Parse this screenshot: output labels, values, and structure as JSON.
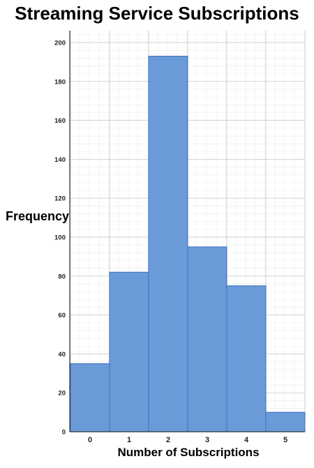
{
  "chart_data": {
    "type": "bar",
    "title": "Streaming Service Subscriptions",
    "xlabel": "Number of Subscriptions",
    "ylabel": "Frequency",
    "categories": [
      "0",
      "1",
      "2",
      "3",
      "4",
      "5"
    ],
    "values": [
      35,
      82,
      193,
      95,
      75,
      10
    ],
    "ylim": [
      0,
      200
    ],
    "yticks": [
      "0",
      "20",
      "40",
      "60",
      "80",
      "100",
      "120",
      "140",
      "160",
      "180",
      "200"
    ],
    "grid": true,
    "bar_color": "#6a9bd8",
    "bar_edge_color": "#3a6fc0"
  }
}
